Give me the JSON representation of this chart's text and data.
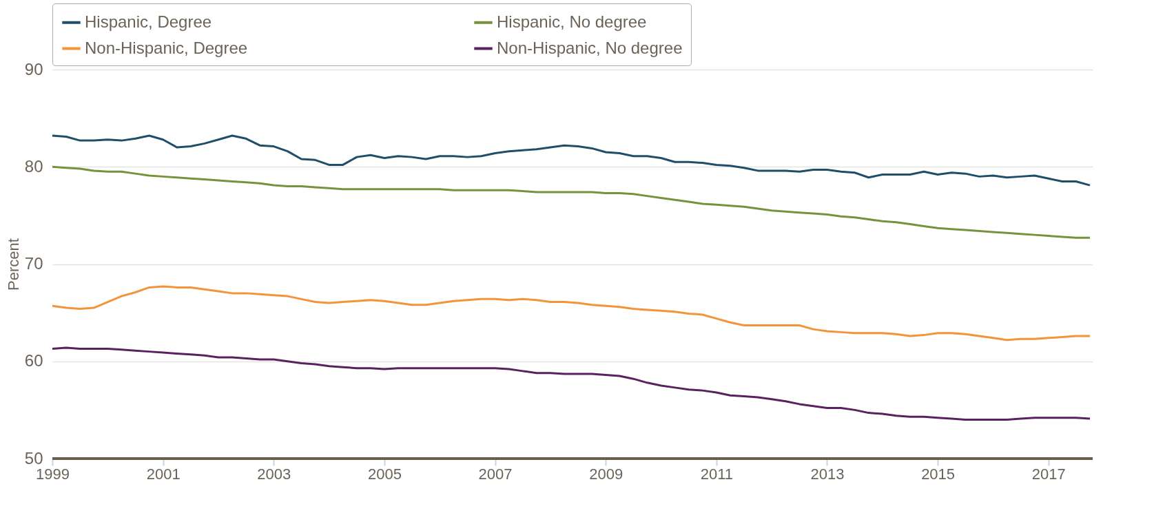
{
  "chart_data": {
    "type": "line",
    "ylabel": "Percent",
    "x": [
      1999,
      1999.25,
      1999.5,
      1999.75,
      2000,
      2000.25,
      2000.5,
      2000.75,
      2001,
      2001.25,
      2001.5,
      2001.75,
      2002,
      2002.25,
      2002.5,
      2002.75,
      2003,
      2003.25,
      2003.5,
      2003.75,
      2004,
      2004.25,
      2004.5,
      2004.75,
      2005,
      2005.25,
      2005.5,
      2005.75,
      2006,
      2006.25,
      2006.5,
      2006.75,
      2007,
      2007.25,
      2007.5,
      2007.75,
      2008,
      2008.25,
      2008.5,
      2008.75,
      2009,
      2009.25,
      2009.5,
      2009.75,
      2010,
      2010.25,
      2010.5,
      2010.75,
      2011,
      2011.25,
      2011.5,
      2011.75,
      2012,
      2012.25,
      2012.5,
      2012.75,
      2013,
      2013.25,
      2013.5,
      2013.75,
      2014,
      2014.25,
      2014.5,
      2014.75,
      2015,
      2015.25,
      2015.5,
      2015.75,
      2016,
      2016.25,
      2016.5,
      2016.75,
      2017,
      2017.25,
      2017.5,
      2017.75
    ],
    "series": [
      {
        "name": "Hispanic, Degree",
        "color": "#1f4e6b",
        "values": [
          83.2,
          83.1,
          82.7,
          82.7,
          82.8,
          82.7,
          82.9,
          83.2,
          82.8,
          82.0,
          82.1,
          82.4,
          82.8,
          83.2,
          82.9,
          82.2,
          82.1,
          81.6,
          80.8,
          80.7,
          80.2,
          80.2,
          81.0,
          81.2,
          80.9,
          81.1,
          81.0,
          80.8,
          81.1,
          81.1,
          81.0,
          81.1,
          81.4,
          81.6,
          81.7,
          81.8,
          82.0,
          82.2,
          82.1,
          81.9,
          81.5,
          81.4,
          81.1,
          81.1,
          80.9,
          80.5,
          80.5,
          80.4,
          80.2,
          80.1,
          79.9,
          79.6,
          79.6,
          79.6,
          79.5,
          79.7,
          79.7,
          79.5,
          79.4,
          78.9,
          79.2,
          79.2,
          79.2,
          79.5,
          79.2,
          79.4,
          79.3,
          79.0,
          79.1,
          78.9,
          79.0,
          79.1,
          78.8,
          78.5,
          78.5,
          78.1
        ]
      },
      {
        "name": "Hispanic, No degree",
        "color": "#76923c",
        "values": [
          80.0,
          79.9,
          79.8,
          79.6,
          79.5,
          79.5,
          79.3,
          79.1,
          79.0,
          78.9,
          78.8,
          78.7,
          78.6,
          78.5,
          78.4,
          78.3,
          78.1,
          78.0,
          78.0,
          77.9,
          77.8,
          77.7,
          77.7,
          77.7,
          77.7,
          77.7,
          77.7,
          77.7,
          77.7,
          77.6,
          77.6,
          77.6,
          77.6,
          77.6,
          77.5,
          77.4,
          77.4,
          77.4,
          77.4,
          77.4,
          77.3,
          77.3,
          77.2,
          77.0,
          76.8,
          76.6,
          76.4,
          76.2,
          76.1,
          76.0,
          75.9,
          75.7,
          75.5,
          75.4,
          75.3,
          75.2,
          75.1,
          74.9,
          74.8,
          74.6,
          74.4,
          74.3,
          74.1,
          73.9,
          73.7,
          73.6,
          73.5,
          73.4,
          73.3,
          73.2,
          73.1,
          73.0,
          72.9,
          72.8,
          72.7,
          72.7
        ]
      },
      {
        "name": "Non-Hispanic, Degree",
        "color": "#f4943a",
        "values": [
          65.7,
          65.5,
          65.4,
          65.5,
          66.1,
          66.7,
          67.1,
          67.6,
          67.7,
          67.6,
          67.6,
          67.4,
          67.2,
          67.0,
          67.0,
          66.9,
          66.8,
          66.7,
          66.4,
          66.1,
          66.0,
          66.1,
          66.2,
          66.3,
          66.2,
          66.0,
          65.8,
          65.8,
          66.0,
          66.2,
          66.3,
          66.4,
          66.4,
          66.3,
          66.4,
          66.3,
          66.1,
          66.1,
          66.0,
          65.8,
          65.7,
          65.6,
          65.4,
          65.3,
          65.2,
          65.1,
          64.9,
          64.8,
          64.4,
          64.0,
          63.7,
          63.7,
          63.7,
          63.7,
          63.7,
          63.3,
          63.1,
          63.0,
          62.9,
          62.9,
          62.9,
          62.8,
          62.6,
          62.7,
          62.9,
          62.9,
          62.8,
          62.6,
          62.4,
          62.2,
          62.3,
          62.3,
          62.4,
          62.5,
          62.6,
          62.6
        ]
      },
      {
        "name": "Non-Hispanic, No degree",
        "color": "#5a2160",
        "values": [
          61.3,
          61.4,
          61.3,
          61.3,
          61.3,
          61.2,
          61.1,
          61.0,
          60.9,
          60.8,
          60.7,
          60.6,
          60.4,
          60.4,
          60.3,
          60.2,
          60.2,
          60.0,
          59.8,
          59.7,
          59.5,
          59.4,
          59.3,
          59.3,
          59.2,
          59.3,
          59.3,
          59.3,
          59.3,
          59.3,
          59.3,
          59.3,
          59.3,
          59.2,
          59.0,
          58.8,
          58.8,
          58.7,
          58.7,
          58.7,
          58.6,
          58.5,
          58.2,
          57.8,
          57.5,
          57.3,
          57.1,
          57.0,
          56.8,
          56.5,
          56.4,
          56.3,
          56.1,
          55.9,
          55.6,
          55.4,
          55.2,
          55.2,
          55.0,
          54.7,
          54.6,
          54.4,
          54.3,
          54.3,
          54.2,
          54.1,
          54.0,
          54.0,
          54.0,
          54.0,
          54.1,
          54.2,
          54.2,
          54.2,
          54.2,
          54.1
        ]
      }
    ],
    "xlim": [
      1999,
      2017.8
    ],
    "xticks": [
      1999,
      2001,
      2003,
      2005,
      2007,
      2009,
      2011,
      2013,
      2015,
      2017
    ],
    "ylim": [
      50,
      90
    ],
    "yticks": [
      50,
      60,
      70,
      80,
      90
    ],
    "grid": "y",
    "legend": "top"
  }
}
